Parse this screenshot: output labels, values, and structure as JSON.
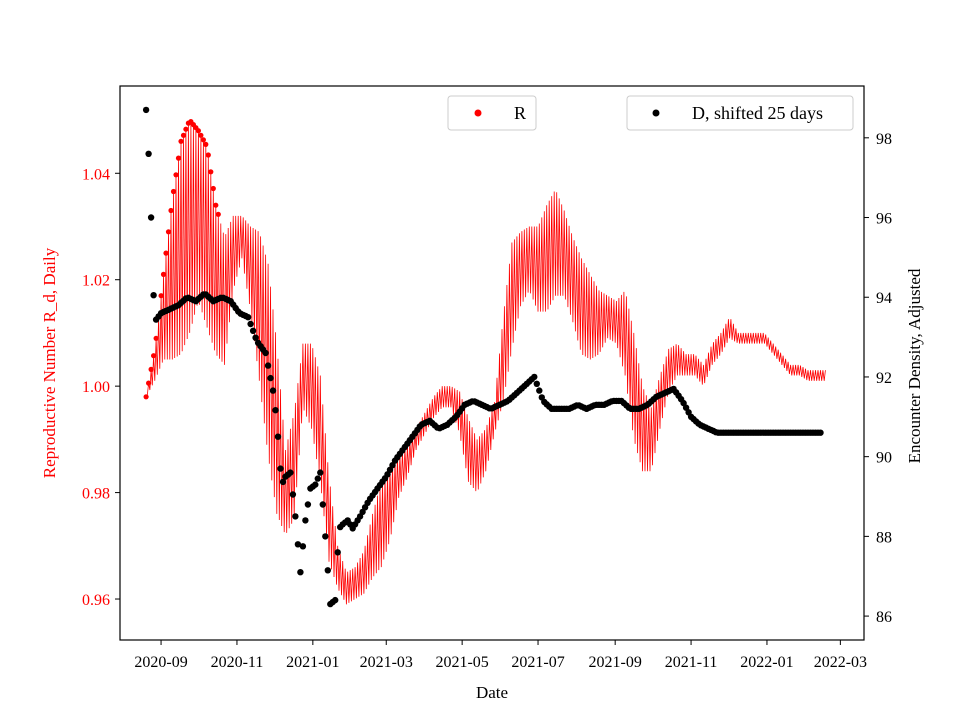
{
  "chart_data": {
    "type": "scatter",
    "xlabel": "Date",
    "ylabel_left": "Reproductive Number R_d, Daily",
    "ylabel_right": "Encounter Density, Adjusted",
    "x_ticks": [
      "2020-09",
      "2020-11",
      "2021-01",
      "2021-03",
      "2021-05",
      "2021-07",
      "2021-09",
      "2021-11",
      "2022-01",
      "2022-03"
    ],
    "y_left_ticks": [
      0.96,
      0.98,
      1.0,
      1.02,
      1.04
    ],
    "y_right_ticks": [
      86,
      88,
      90,
      92,
      94,
      96,
      98
    ],
    "x_range": [
      "2020-07-30",
      "2022-03-20"
    ],
    "y_left_range": [
      0.9523,
      1.0564
    ],
    "y_right_range": [
      85.4,
      99.3
    ],
    "legend_placement": "top",
    "colors": {
      "r_series": "#ff0000",
      "d_series": "#000000",
      "left_axis_text": "#ff0000"
    },
    "series": [
      {
        "name": "R",
        "axis": "left",
        "color": "#ff0000",
        "dates": [
          "2020-08-20",
          "2020-08-27",
          "2020-09-03",
          "2020-09-10",
          "2020-09-17",
          "2020-09-24",
          "2020-10-01",
          "2020-10-08",
          "2020-10-15",
          "2020-10-22",
          "2020-10-29",
          "2020-11-05",
          "2020-11-12",
          "2020-11-19",
          "2020-11-26",
          "2020-12-03",
          "2020-12-10",
          "2020-12-17",
          "2020-12-24",
          "2020-12-31",
          "2021-01-07",
          "2021-01-14",
          "2021-01-21",
          "2021-01-28",
          "2021-02-04",
          "2021-02-11",
          "2021-02-18",
          "2021-02-25",
          "2021-03-04",
          "2021-03-11",
          "2021-03-18",
          "2021-03-25",
          "2021-04-01",
          "2021-04-08",
          "2021-04-15",
          "2021-04-22",
          "2021-04-29",
          "2021-05-06",
          "2021-05-13",
          "2021-05-20",
          "2021-05-27",
          "2021-06-03",
          "2021-06-10",
          "2021-06-17",
          "2021-06-24",
          "2021-07-01",
          "2021-07-08",
          "2021-07-15",
          "2021-07-22",
          "2021-07-29",
          "2021-08-05",
          "2021-08-12",
          "2021-08-19",
          "2021-08-26",
          "2021-09-02",
          "2021-09-09",
          "2021-09-16",
          "2021-09-23",
          "2021-09-30",
          "2021-10-07",
          "2021-10-14",
          "2021-10-21",
          "2021-10-28",
          "2021-11-04",
          "2021-11-11",
          "2021-11-18",
          "2021-11-25",
          "2021-12-02",
          "2021-12-09",
          "2021-12-16",
          "2021-12-23",
          "2021-12-30",
          "2022-01-06",
          "2022-01-13",
          "2022-01-20",
          "2022-01-27",
          "2022-02-03",
          "2022-02-10",
          "2022-02-17"
        ],
        "values": [
          0.998,
          1.004,
          1.013,
          1.02,
          1.026,
          1.03,
          1.032,
          1.028,
          1.02,
          1.016,
          1.025,
          1.028,
          1.022,
          1.015,
          1.005,
          0.992,
          0.98,
          0.985,
          1.002,
          1.0,
          0.992,
          0.975,
          0.966,
          0.962,
          0.963,
          0.965,
          0.97,
          0.974,
          0.978,
          0.983,
          0.986,
          0.99,
          0.993,
          0.996,
          0.998,
          0.998,
          0.995,
          0.988,
          0.985,
          0.988,
          0.994,
          1.005,
          1.017,
          1.022,
          1.024,
          1.022,
          1.024,
          1.027,
          1.025,
          1.02,
          1.015,
          1.013,
          1.012,
          1.013,
          1.012,
          1.01,
          1.0,
          0.992,
          0.99,
          0.997,
          1.003,
          1.005,
          1.004,
          1.004,
          1.002,
          1.006,
          1.008,
          1.011,
          1.009,
          1.009,
          1.009,
          1.009,
          1.007,
          1.005,
          1.003,
          1.003,
          1.002,
          1.002,
          1.002
        ],
        "amplitude": [
          0,
          0.003,
          0.008,
          0.015,
          0.02,
          0.02,
          0.016,
          0.017,
          0.014,
          0.012,
          0.007,
          0.004,
          0.008,
          0.014,
          0.018,
          0.016,
          0.008,
          0.01,
          0.006,
          0.008,
          0.01,
          0.008,
          0.004,
          0.003,
          0.003,
          0.004,
          0.006,
          0.008,
          0.007,
          0.004,
          0.003,
          0.002,
          0.002,
          0.002,
          0.002,
          0.002,
          0.004,
          0.006,
          0.005,
          0.004,
          0.003,
          0.008,
          0.01,
          0.007,
          0.006,
          0.008,
          0.01,
          0.01,
          0.008,
          0.008,
          0.009,
          0.008,
          0.006,
          0.004,
          0.004,
          0.008,
          0.01,
          0.008,
          0.006,
          0.005,
          0.004,
          0.003,
          0.002,
          0.002,
          0.002,
          0.002,
          0.002,
          0.002,
          0.001,
          0.001,
          0.001,
          0.001,
          0.001,
          0.001,
          0.001,
          0.001,
          0.001,
          0.001,
          0.001
        ]
      },
      {
        "name": "D, shifted 25 days",
        "axis": "right",
        "color": "#000000",
        "dates": [
          "2020-08-20",
          "2020-08-22",
          "2020-08-23",
          "2020-08-24",
          "2020-08-25",
          "2020-08-27",
          "2020-09-01",
          "2020-09-08",
          "2020-09-15",
          "2020-09-22",
          "2020-09-29",
          "2020-10-06",
          "2020-10-13",
          "2020-10-20",
          "2020-10-27",
          "2020-11-03",
          "2020-11-10",
          "2020-11-17",
          "2020-11-24",
          "2020-12-01",
          "2020-12-04",
          "2020-12-07",
          "2020-12-10",
          "2020-12-14",
          "2020-12-18",
          "2020-12-22",
          "2020-12-26",
          "2020-12-30",
          "2021-01-03",
          "2021-01-07",
          "2021-01-11",
          "2021-01-15",
          "2021-01-19",
          "2021-01-22",
          "2021-01-25",
          "2021-01-29",
          "2021-02-02",
          "2021-02-08",
          "2021-02-15",
          "2021-02-22",
          "2021-03-01",
          "2021-03-08",
          "2021-03-15",
          "2021-03-22",
          "2021-03-29",
          "2021-04-05",
          "2021-04-12",
          "2021-04-19",
          "2021-04-26",
          "2021-05-03",
          "2021-05-10",
          "2021-05-17",
          "2021-05-24",
          "2021-05-31",
          "2021-06-07",
          "2021-06-14",
          "2021-06-21",
          "2021-06-28",
          "2021-07-05",
          "2021-07-12",
          "2021-07-19",
          "2021-07-26",
          "2021-08-02",
          "2021-08-09",
          "2021-08-16",
          "2021-08-23",
          "2021-08-30",
          "2021-09-06",
          "2021-09-13",
          "2021-09-20",
          "2021-09-27",
          "2021-10-04",
          "2021-10-11",
          "2021-10-18",
          "2021-10-25",
          "2021-11-01",
          "2021-11-08",
          "2021-11-15",
          "2021-11-22",
          "2021-11-29",
          "2021-12-06",
          "2021-12-13",
          "2021-12-20",
          "2021-12-27",
          "2022-01-03",
          "2022-01-10",
          "2022-01-17",
          "2022-01-24",
          "2022-01-31",
          "2022-02-07",
          "2022-02-14"
        ],
        "values": [
          98.7,
          97.6,
          97.3,
          96.0,
          94.7,
          93.4,
          93.6,
          93.7,
          93.8,
          94.0,
          93.9,
          94.1,
          93.9,
          94.0,
          93.9,
          93.6,
          93.5,
          92.9,
          92.6,
          91.5,
          90.5,
          89.3,
          89.5,
          89.6,
          88.5,
          87.1,
          88.4,
          89.2,
          89.3,
          89.6,
          88.0,
          86.3,
          86.4,
          88.2,
          88.3,
          88.4,
          88.2,
          88.5,
          88.9,
          89.2,
          89.5,
          89.9,
          90.2,
          90.5,
          90.8,
          90.9,
          90.7,
          90.8,
          91.0,
          91.3,
          91.4,
          91.3,
          91.2,
          91.3,
          91.4,
          91.6,
          91.8,
          92.0,
          91.4,
          91.2,
          91.2,
          91.2,
          91.3,
          91.2,
          91.3,
          91.3,
          91.4,
          91.4,
          91.2,
          91.2,
          91.3,
          91.5,
          91.6,
          91.7,
          91.4,
          91.0,
          90.8,
          90.7,
          90.6,
          90.6,
          90.6,
          90.6,
          90.6,
          90.6,
          90.6,
          90.6,
          90.6,
          90.6,
          90.6,
          90.6,
          90.6
        ]
      }
    ]
  }
}
